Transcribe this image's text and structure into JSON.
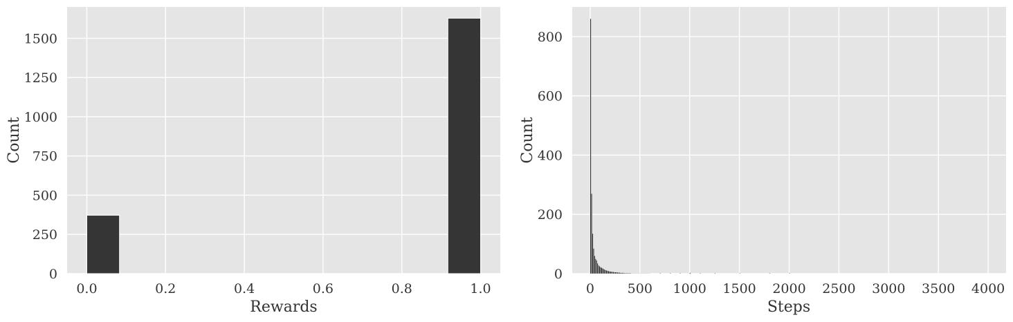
{
  "chart_data": [
    {
      "type": "bar",
      "xlabel": "Rewards",
      "ylabel": "Count",
      "xlim": [
        -0.05,
        1.05
      ],
      "ylim": [
        0,
        1700
      ],
      "xticks": [
        0.0,
        0.2,
        0.4,
        0.6,
        0.8,
        1.0
      ],
      "xtick_labels": [
        "0.0",
        "0.2",
        "0.4",
        "0.6",
        "0.8",
        "1.0"
      ],
      "yticks": [
        0,
        250,
        500,
        750,
        1000,
        1250,
        1500
      ],
      "ytick_labels": [
        "0",
        "250",
        "500",
        "750",
        "1000",
        "1250",
        "1500"
      ],
      "bins": [
        {
          "x0": 0.0,
          "x1": 0.083,
          "value": 372
        },
        {
          "x0": 0.917,
          "x1": 1.0,
          "value": 1628
        }
      ],
      "grid": true,
      "bar_color": "#2b2b2b"
    },
    {
      "type": "bar",
      "xlabel": "Steps",
      "ylabel": "Count",
      "xlim": [
        -180,
        4180
      ],
      "ylim": [
        0,
        900
      ],
      "xticks": [
        0,
        500,
        1000,
        1500,
        2000,
        2500,
        3000,
        3500,
        4000
      ],
      "xtick_labels": [
        "0",
        "500",
        "1000",
        "1500",
        "2000",
        "2500",
        "3000",
        "3500",
        "4000"
      ],
      "yticks": [
        0,
        200,
        400,
        600,
        800
      ],
      "ytick_labels": [
        "0",
        "200",
        "400",
        "600",
        "800"
      ],
      "bin_start": 0,
      "bin_width": 10,
      "values": [
        860,
        270,
        135,
        85,
        60,
        50,
        45,
        35,
        28,
        25,
        22,
        20,
        18,
        16,
        14,
        12,
        11,
        10,
        9,
        8,
        7,
        7,
        6,
        6,
        5,
        5,
        5,
        4,
        4,
        4,
        3,
        3,
        3,
        3,
        2,
        2,
        2,
        2,
        2,
        2,
        2,
        1,
        1,
        1,
        1,
        1,
        1,
        1,
        1,
        1,
        1,
        1,
        1,
        1,
        1,
        1,
        1,
        1,
        1,
        1
      ],
      "sparse_bins": [
        {
          "x": 700,
          "value": 1
        },
        {
          "x": 800,
          "value": 1
        },
        {
          "x": 900,
          "value": 1
        },
        {
          "x": 1000,
          "value": 2
        },
        {
          "x": 1100,
          "value": 1
        },
        {
          "x": 1250,
          "value": 1
        },
        {
          "x": 1500,
          "value": 1
        },
        {
          "x": 1800,
          "value": 1
        },
        {
          "x": 2000,
          "value": 1
        }
      ],
      "grid": true,
      "bar_color": "#2b2b2b"
    }
  ]
}
